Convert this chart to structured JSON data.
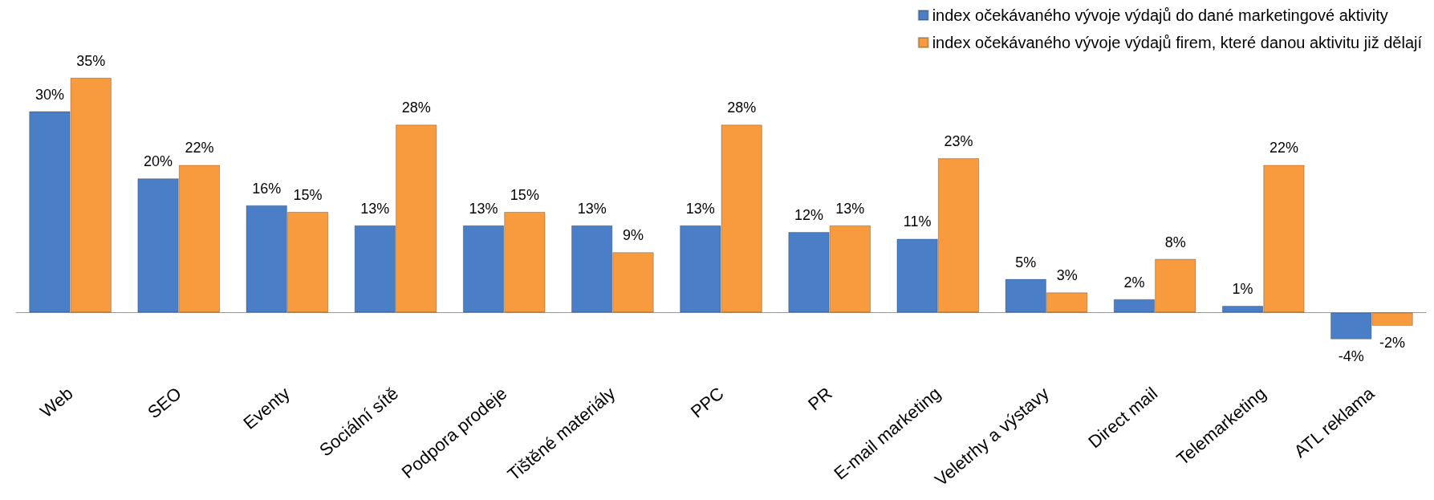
{
  "chart_data": {
    "type": "bar",
    "categories": [
      "Web",
      "SEO",
      "Eventy",
      "Sociální sítě",
      "Podpora prodeje",
      "Tištěné materiály",
      "PPC",
      "PR",
      "E-mail marketing",
      "Veletrhy a výstavy",
      "Direct mail",
      "Telemarketing",
      "ATL reklama"
    ],
    "series": [
      {
        "name": "index očekávaného vývoje výdajů do dané marketingové aktivity",
        "color": "#4a7fc8",
        "values": [
          30,
          20,
          16,
          13,
          13,
          13,
          13,
          12,
          11,
          5,
          2,
          1,
          -4
        ],
        "value_labels": [
          "30%",
          "20%",
          "16%",
          "13%",
          "13%",
          "13%",
          "13%",
          "12%",
          "11%",
          "5%",
          "2%",
          "1%",
          "-4%"
        ]
      },
      {
        "name": "index očekávaného vývoje výdajů firem, které danou aktivitu již dělají",
        "color": "#f79b3e",
        "values": [
          35,
          22,
          15,
          28,
          15,
          9,
          28,
          13,
          23,
          3,
          8,
          22,
          -2
        ],
        "value_labels": [
          "35%",
          "22%",
          "15%",
          "28%",
          "15%",
          "9%",
          "28%",
          "13%",
          "23%",
          "3%",
          "8%",
          "22%",
          "-2%"
        ]
      }
    ],
    "legend": "top right",
    "grid": false
  }
}
